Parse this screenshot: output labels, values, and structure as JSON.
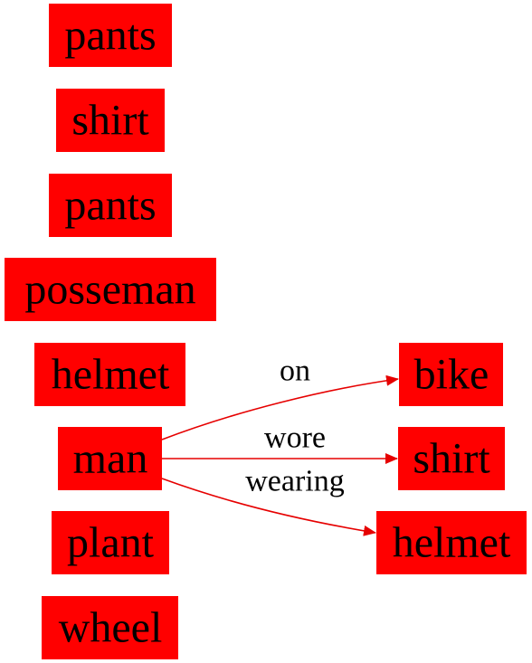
{
  "colors": {
    "node_fill": "#ff0000",
    "edge": "#e60000",
    "text": "#000000",
    "background": "#ffffff"
  },
  "nodes": {
    "pants_1": "pants",
    "shirt_1": "shirt",
    "pants_2": "pants",
    "posseman": "posseman",
    "helmet_1": "helmet",
    "man": "man",
    "plant": "plant",
    "wheel": "wheel",
    "bike": "bike",
    "shirt_2": "shirt",
    "helmet_2": "helmet"
  },
  "edges": {
    "on": "on",
    "wore": "wore",
    "wearing": "wearing"
  }
}
